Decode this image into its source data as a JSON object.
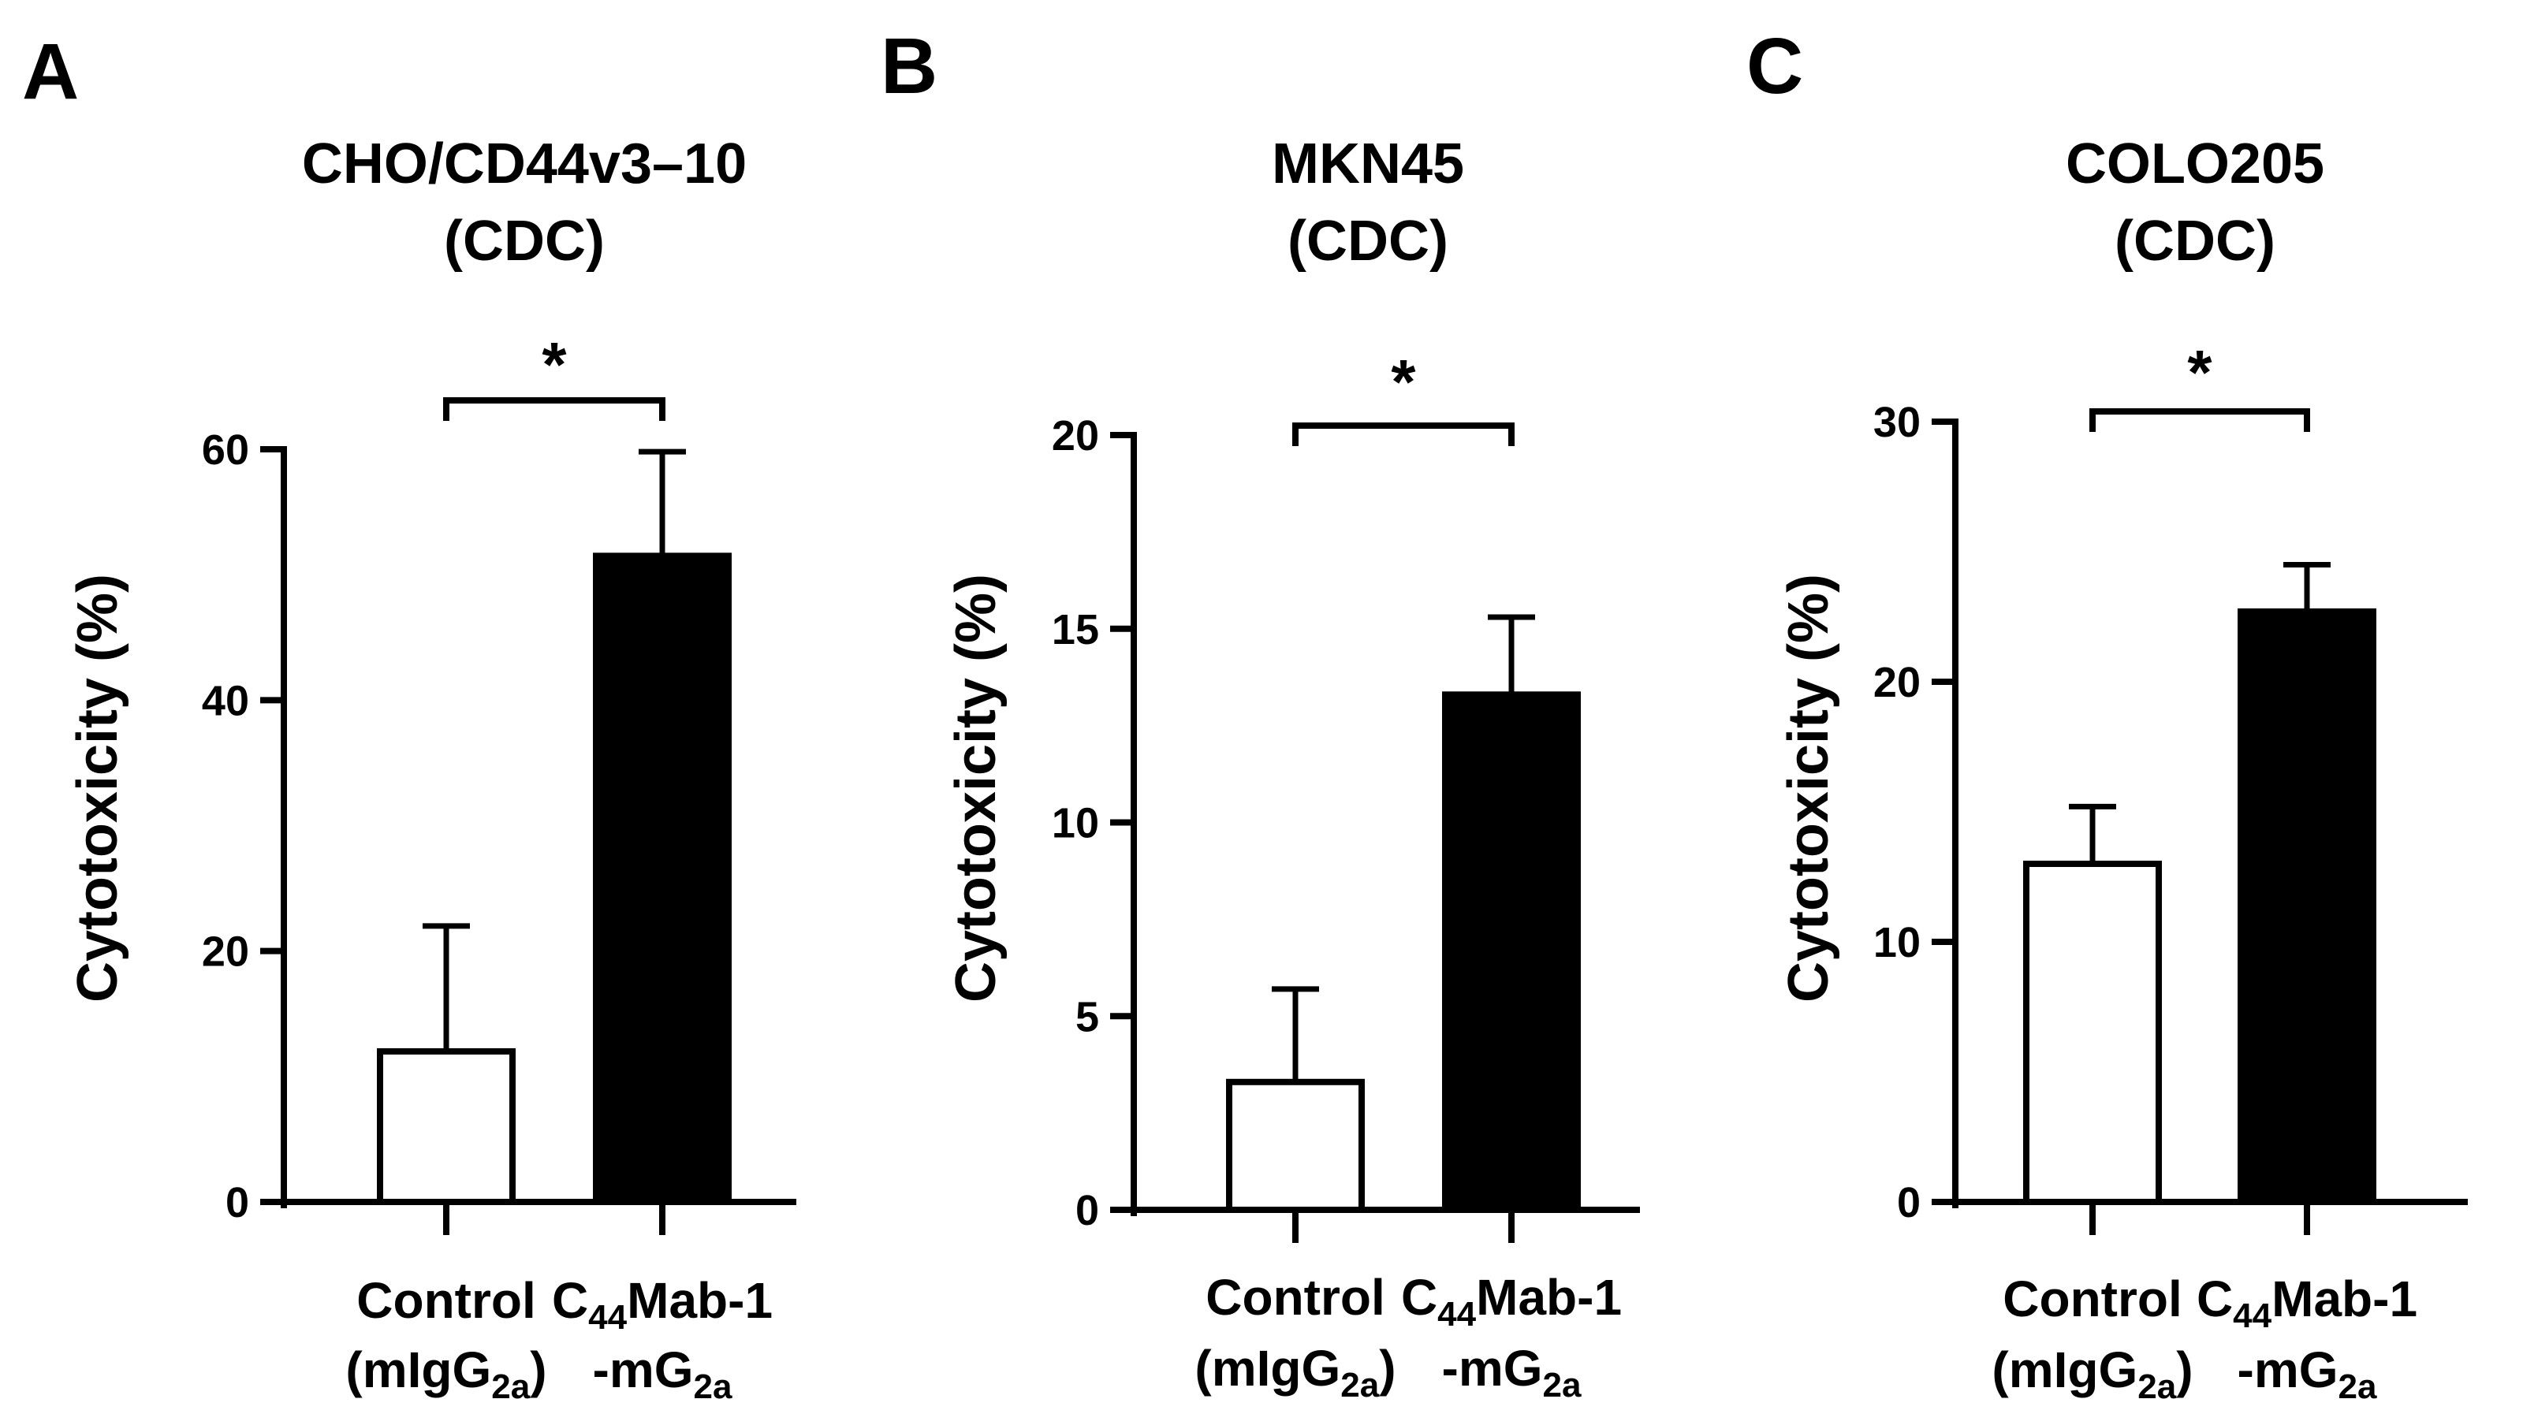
{
  "figure": {
    "panels": [
      {
        "letter": "A"
      },
      {
        "letter": "B"
      },
      {
        "letter": "C"
      }
    ]
  },
  "chart_data": [
    {
      "type": "bar",
      "panel": "A",
      "title": [
        "CHO/CD44v3–10",
        "(CDC)"
      ],
      "ylabel": "Cytotoxicity (%)",
      "ylim": [
        0,
        60
      ],
      "yticks": [
        0,
        20,
        40,
        60
      ],
      "categories": [
        {
          "line1": {
            "main": "Control"
          },
          "line2": {
            "pre": "(mIgG",
            "sub": "2a",
            "post": ")"
          }
        },
        {
          "line1": {
            "main": "C",
            "sub": "44",
            "post": "Mab-1"
          },
          "line2": {
            "pre": "-mG",
            "sub": "2a",
            "post": ""
          }
        }
      ],
      "values": [
        12,
        51.5
      ],
      "errors": [
        10,
        8.3
      ],
      "fills": [
        "#ffffff",
        "#000000"
      ],
      "significance": "*"
    },
    {
      "type": "bar",
      "panel": "B",
      "title": [
        "MKN45",
        "(CDC)"
      ],
      "ylabel": "Cytotoxicity (%)",
      "ylim": [
        0,
        20
      ],
      "yticks": [
        0,
        5,
        10,
        15,
        20
      ],
      "categories": [
        {
          "line1": {
            "main": "Control"
          },
          "line2": {
            "pre": "(mIgG",
            "sub": "2a",
            "post": ")"
          }
        },
        {
          "line1": {
            "main": "C",
            "sub": "44",
            "post": "Mab-1"
          },
          "line2": {
            "pre": "-mG",
            "sub": "2a",
            "post": ""
          }
        }
      ],
      "values": [
        3.3,
        13.3
      ],
      "errors": [
        2.4,
        2.0
      ],
      "fills": [
        "#ffffff",
        "#000000"
      ],
      "significance": "*"
    },
    {
      "type": "bar",
      "panel": "C",
      "title": [
        "COLO205",
        "(CDC)"
      ],
      "ylabel": "Cytotoxicity (%)",
      "ylim": [
        0,
        30
      ],
      "yticks": [
        0,
        10,
        20,
        30
      ],
      "categories": [
        {
          "line1": {
            "main": "Control"
          },
          "line2": {
            "pre": "(mIgG",
            "sub": "2a",
            "post": ")"
          }
        },
        {
          "line1": {
            "main": "C",
            "sub": "44",
            "post": "Mab-1"
          },
          "line2": {
            "pre": "-mG",
            "sub": "2a",
            "post": ""
          }
        }
      ],
      "values": [
        13,
        22.7
      ],
      "errors": [
        2.2,
        1.8
      ],
      "fills": [
        "#ffffff",
        "#000000"
      ],
      "significance": "*"
    }
  ]
}
